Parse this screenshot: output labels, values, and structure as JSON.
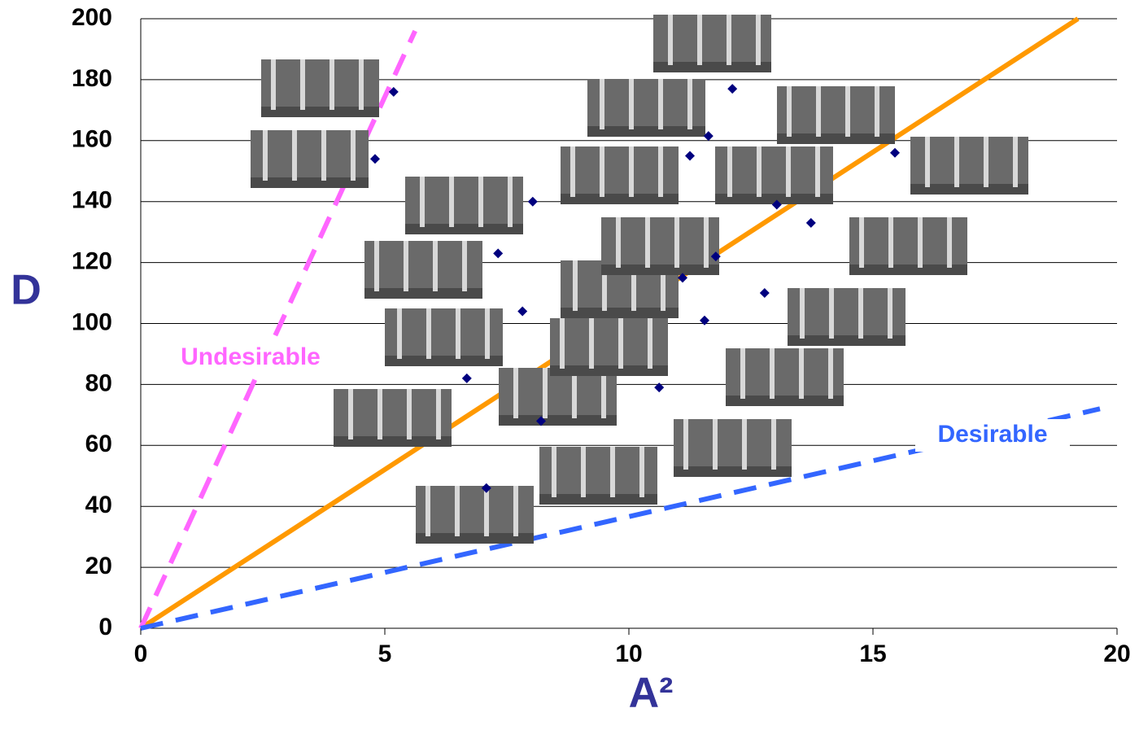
{
  "chart_data": {
    "type": "scatter",
    "x": [
      5.18,
      4.8,
      8.03,
      7.32,
      7.82,
      6.68,
      12.12,
      11.63,
      11.25,
      15.45,
      13.03,
      13.73,
      12.78,
      11.55,
      10.62,
      11.1,
      11.78,
      8.2,
      7.08
    ],
    "values": [
      176,
      154,
      140,
      123,
      104,
      82,
      177,
      161.5,
      155,
      156,
      139,
      133,
      110,
      101,
      79,
      115,
      122,
      68,
      46
    ],
    "color": "#00007f",
    "lines": [
      {
        "color": "#ff9900",
        "dashed": false,
        "x": [
          0,
          19.2
        ],
        "values": [
          0,
          200
        ]
      },
      {
        "color": "#ff66ff",
        "dashed": true,
        "x": [
          0,
          5.62
        ],
        "values": [
          0,
          196
        ]
      },
      {
        "color": "#3366ff",
        "dashed": true,
        "x": [
          0,
          19.65
        ],
        "values": [
          0,
          72
        ]
      }
    ],
    "annotations": [
      {
        "text": "Undesirable",
        "color": "#ff66ff"
      },
      {
        "text": "Desirable",
        "color": "#3366ff"
      }
    ],
    "xlabel": "A²",
    "ylabel": "D",
    "xlim": [
      0,
      20
    ],
    "ylim": [
      0,
      200
    ],
    "xticks": [
      0,
      5,
      10,
      15,
      20
    ],
    "yticks": [
      0,
      20,
      40,
      60,
      80,
      100,
      120,
      140,
      160,
      180,
      200
    ],
    "grid": true
  }
}
